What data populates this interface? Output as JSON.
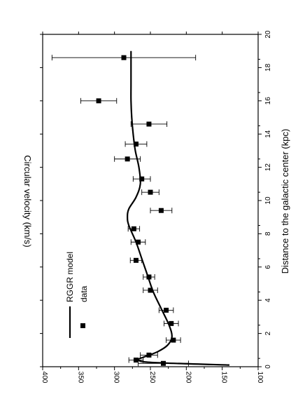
{
  "chart_data": {
    "type": "scatter",
    "orientation": "rotated-90-clockwise",
    "title": "",
    "xlabel": "Distance to the galactic center  (kpc)",
    "ylabel": "Circular velocity (km/s)",
    "xlim": [
      0,
      20
    ],
    "ylim": [
      100,
      400
    ],
    "x_ticks": [
      0,
      2,
      4,
      6,
      8,
      10,
      12,
      14,
      16,
      18,
      20
    ],
    "y_ticks": [
      100,
      150,
      200,
      250,
      300,
      350,
      400
    ],
    "grid": false,
    "legend_position": "bottom-right",
    "series": [
      {
        "name": "data",
        "kind": "points-with-error-bars",
        "points": [
          {
            "x": 0.2,
            "y": 232,
            "err": 35
          },
          {
            "x": 0.4,
            "y": 270,
            "err": 10
          },
          {
            "x": 0.7,
            "y": 252,
            "err": 12
          },
          {
            "x": 1.6,
            "y": 218,
            "err": 10
          },
          {
            "x": 2.6,
            "y": 221,
            "err": 10
          },
          {
            "x": 3.4,
            "y": 228,
            "err": 10
          },
          {
            "x": 4.6,
            "y": 250,
            "err": 10
          },
          {
            "x": 5.4,
            "y": 252,
            "err": 8
          },
          {
            "x": 6.4,
            "y": 270,
            "err": 8
          },
          {
            "x": 7.5,
            "y": 267,
            "err": 10
          },
          {
            "x": 8.3,
            "y": 273,
            "err": 8
          },
          {
            "x": 9.4,
            "y": 235,
            "err": 15
          },
          {
            "x": 10.5,
            "y": 250,
            "err": 12
          },
          {
            "x": 11.3,
            "y": 262,
            "err": 12
          },
          {
            "x": 12.5,
            "y": 282,
            "err": 18
          },
          {
            "x": 13.4,
            "y": 270,
            "err": 15
          },
          {
            "x": 14.6,
            "y": 252,
            "err": 25
          },
          {
            "x": 16.0,
            "y": 322,
            "err": 25
          },
          {
            "x": 18.6,
            "y": 287,
            "err": 100
          }
        ]
      },
      {
        "name": "RGGR model",
        "kind": "line",
        "points": [
          [
            0.1,
            140
          ],
          [
            0.25,
            245
          ],
          [
            0.4,
            267
          ],
          [
            0.6,
            258
          ],
          [
            0.9,
            240
          ],
          [
            1.3,
            226
          ],
          [
            1.8,
            220
          ],
          [
            2.5,
            224
          ],
          [
            3.5,
            235
          ],
          [
            4.5,
            246
          ],
          [
            5.5,
            254
          ],
          [
            6.5,
            262
          ],
          [
            7.5,
            270
          ],
          [
            8.5,
            280
          ],
          [
            9.0,
            282
          ],
          [
            9.5,
            280
          ],
          [
            10.2,
            270
          ],
          [
            11.0,
            264
          ],
          [
            12.0,
            266
          ],
          [
            13.0,
            271
          ],
          [
            14.0,
            274
          ],
          [
            15.0,
            276
          ],
          [
            16.0,
            277
          ],
          [
            17.0,
            277
          ],
          [
            18.0,
            277
          ],
          [
            19.0,
            277
          ]
        ]
      }
    ]
  }
}
